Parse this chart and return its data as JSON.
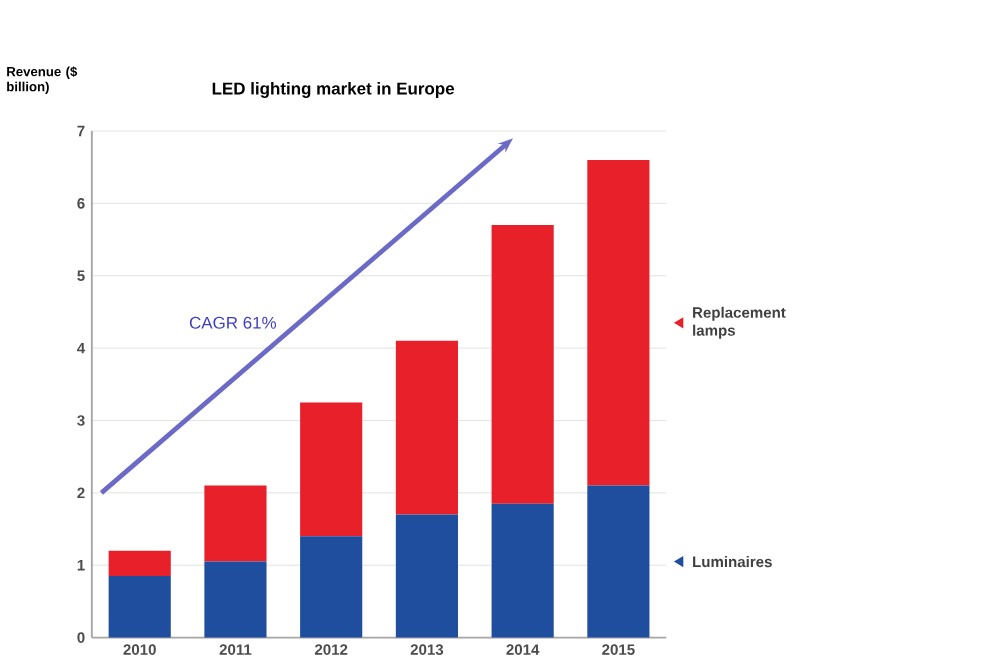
{
  "chart_data": {
    "type": "bar",
    "title": "LED lighting market in Europe",
    "ylabel": "Revenue ($ billion)",
    "categories": [
      "2010",
      "2011",
      "2012",
      "2013",
      "2014",
      "2015"
    ],
    "series": [
      {
        "name": "Luminaires",
        "color": "#1f4e9e",
        "values": [
          0.85,
          1.05,
          1.4,
          1.7,
          1.85,
          2.1
        ]
      },
      {
        "name": "Replacement lamps",
        "color": "#e8202a",
        "values": [
          0.35,
          1.05,
          1.85,
          2.4,
          3.85,
          4.5
        ]
      }
    ],
    "stacked": true,
    "ylim": [
      0,
      7
    ],
    "yticks": [
      0,
      1,
      2,
      3,
      4,
      5,
      6,
      7
    ],
    "grid": "y",
    "legend": "right",
    "annotations": [
      "CAGR 61%"
    ]
  }
}
